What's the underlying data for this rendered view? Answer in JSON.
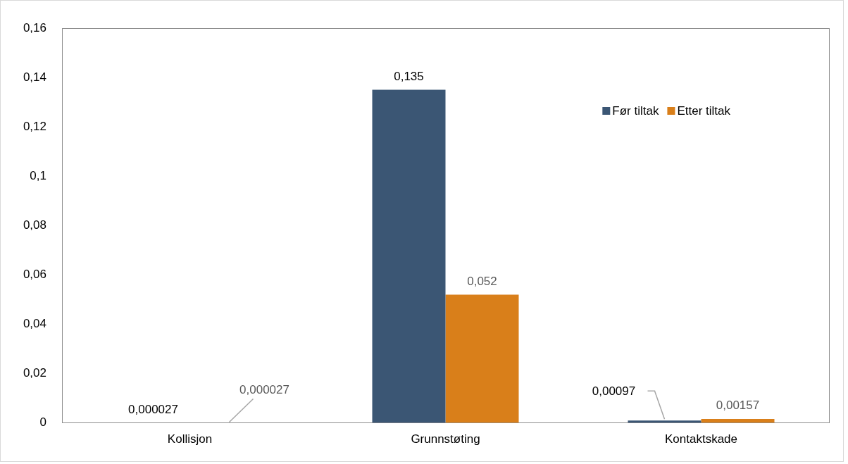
{
  "chart_data": {
    "type": "bar",
    "categories": [
      "Kollisjon",
      "Grunnstøting",
      "Kontaktskade"
    ],
    "series": [
      {
        "name": "Før tiltak",
        "color": "#3b5674",
        "values": [
          2.7e-05,
          0.135,
          0.00097
        ],
        "value_labels": [
          "0,000027",
          "0,135",
          "0,00097"
        ]
      },
      {
        "name": "Etter tiltak",
        "color": "#d97f1a",
        "values": [
          2.7e-05,
          0.052,
          0.00157
        ],
        "value_labels": [
          "0,000027",
          "0,052",
          "0,00157"
        ]
      }
    ],
    "ylim": [
      0,
      0.16
    ],
    "yticks": [
      0,
      {
        "value": 0.02,
        "label": "0,02"
      },
      {
        "value": 0.04,
        "label": "0,04"
      },
      {
        "value": 0.06,
        "label": "0,06"
      },
      {
        "value": 0.08,
        "label": "0,08"
      },
      {
        "value": 0.1,
        "label": "0,1"
      },
      {
        "value": 0.12,
        "label": "0,12"
      },
      {
        "value": 0.14,
        "label": "0,14"
      },
      {
        "value": 0.16,
        "label": "0,16"
      }
    ],
    "grid": false,
    "legend": "top right"
  }
}
